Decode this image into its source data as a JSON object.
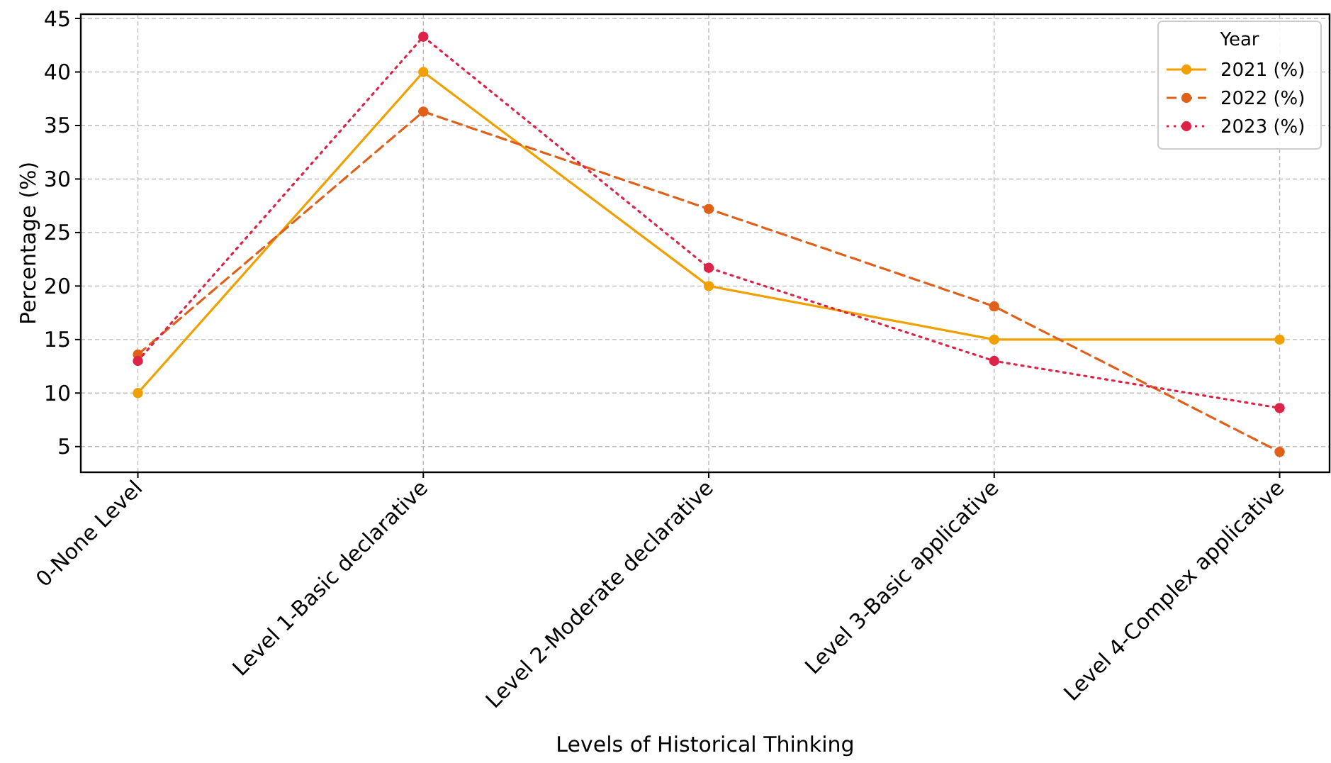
{
  "chart_data": {
    "type": "line",
    "xlabel": "Levels of Historical Thinking",
    "ylabel": "Percentage (%)",
    "legend_title": "Year",
    "legend": "top right",
    "grid": true,
    "marker": "circle",
    "categories": [
      "0-None Level",
      "Level 1-Basic declarative",
      "Level 2-Moderate declarative",
      "Level 3-Basic applicative",
      "Level 4-Complex applicative"
    ],
    "ylim": [
      2.6,
      45.4
    ],
    "yticks": [
      5,
      10,
      15,
      20,
      25,
      30,
      35,
      40,
      45
    ],
    "series": [
      {
        "name": "2021 (%)",
        "color": "#f0a000",
        "line_style": "solid",
        "values": [
          10,
          40,
          20,
          15,
          15
        ]
      },
      {
        "name": "2022 (%)",
        "color": "#e0601a",
        "line_style": "dashed",
        "values": [
          13.6,
          36.3,
          27.2,
          18.1,
          4.5
        ]
      },
      {
        "name": "2023 (%)",
        "color": "#dc2448",
        "line_style": "dotted",
        "values": [
          13.0,
          43.3,
          21.7,
          13.0,
          8.6
        ]
      }
    ]
  }
}
